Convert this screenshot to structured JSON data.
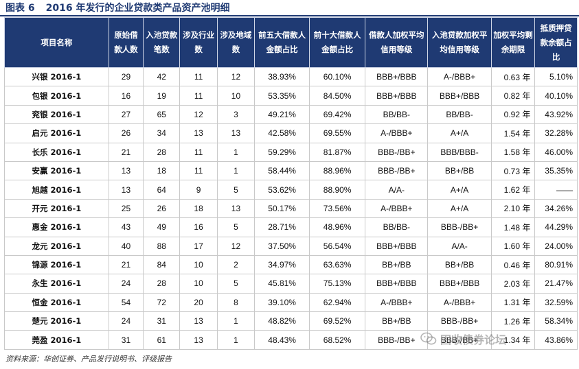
{
  "title": {
    "label": "图表 6",
    "text": "2016 年发行的企业贷款类产品资产池明细"
  },
  "table": {
    "headers": [
      "项目名称",
      "原始借款人数",
      "入池贷款笔数",
      "涉及行业数",
      "涉及地域数",
      "前五大借款人金额占比",
      "前十大借款人金额占比",
      "借款人加权平均信用等级",
      "入池贷款加权平均信用等级",
      "加权平均剩余期限",
      "抵质押贷款余额占比"
    ],
    "rows": [
      [
        "兴银 2016-1",
        "29",
        "42",
        "11",
        "12",
        "38.93%",
        "60.10%",
        "BBB+/BBB",
        "A-/BBB+",
        "0.63 年",
        "5.10%"
      ],
      [
        "包银 2016-1",
        "16",
        "19",
        "11",
        "10",
        "53.35%",
        "84.50%",
        "BBB+/BBB",
        "BBB+/BBB",
        "0.82 年",
        "40.10%"
      ],
      [
        "兖银 2016-1",
        "27",
        "65",
        "12",
        "3",
        "49.21%",
        "69.42%",
        "BB/BB-",
        "BB/BB-",
        "0.92 年",
        "43.92%"
      ],
      [
        "启元 2016-1",
        "26",
        "34",
        "13",
        "13",
        "42.58%",
        "69.55%",
        "A-/BBB+",
        "A+/A",
        "1.54 年",
        "32.28%"
      ],
      [
        "长乐 2016-1",
        "21",
        "28",
        "11",
        "1",
        "59.29%",
        "81.87%",
        "BBB-/BB+",
        "BBB/BBB-",
        "1.58 年",
        "46.00%"
      ],
      [
        "安赢 2016-1",
        "13",
        "18",
        "11",
        "1",
        "58.44%",
        "88.96%",
        "BBB-/BB+",
        "BB+/BB",
        "0.73 年",
        "35.35%"
      ],
      [
        "旭越 2016-1",
        "13",
        "64",
        "9",
        "5",
        "53.62%",
        "88.90%",
        "A/A-",
        "A+/A",
        "1.62 年",
        "——"
      ],
      [
        "开元 2016-1",
        "25",
        "26",
        "18",
        "13",
        "50.17%",
        "73.56%",
        "A-/BBB+",
        "A+/A",
        "2.10 年",
        "34.26%"
      ],
      [
        "惠金 2016-1",
        "43",
        "49",
        "16",
        "5",
        "28.71%",
        "48.96%",
        "BB/BB-",
        "BBB-/BB+",
        "1.48 年",
        "44.29%"
      ],
      [
        "龙元 2016-1",
        "40",
        "88",
        "17",
        "12",
        "37.50%",
        "56.54%",
        "BBB+/BBB",
        "A/A-",
        "1.60 年",
        "24.00%"
      ],
      [
        "锦源 2016-1",
        "21",
        "84",
        "10",
        "2",
        "34.97%",
        "63.63%",
        "BB+/BB",
        "BB+/BB",
        "0.46 年",
        "80.91%"
      ],
      [
        "永生 2016-1",
        "24",
        "28",
        "10",
        "5",
        "45.81%",
        "75.13%",
        "BBB+/BBB",
        "BBB+/BBB",
        "2.03 年",
        "21.47%"
      ],
      [
        "恒金 2016-1",
        "54",
        "72",
        "20",
        "8",
        "39.10%",
        "62.94%",
        "A-/BBB+",
        "A-/BBB+",
        "1.31 年",
        "32.59%"
      ],
      [
        "楚元 2016-1",
        "24",
        "31",
        "13",
        "1",
        "48.82%",
        "69.52%",
        "BB+/BB",
        "BBB-/BB+",
        "1.26 年",
        "58.34%"
      ],
      [
        "莞盈 2016-1",
        "31",
        "61",
        "13",
        "1",
        "48.43%",
        "68.52%",
        "BBB-/BB+",
        "BBB-/BB+",
        "1.34 年",
        "43.86%"
      ]
    ]
  },
  "source": "资料来源：华创证券、产品发行说明书、评级报告",
  "watermark": {
    "text": "固收债券论坛",
    "icon": "wechat-icon"
  },
  "colors": {
    "header_bg": "#1f3a73",
    "header_text": "#ffffff",
    "title": "#1f3a73"
  }
}
